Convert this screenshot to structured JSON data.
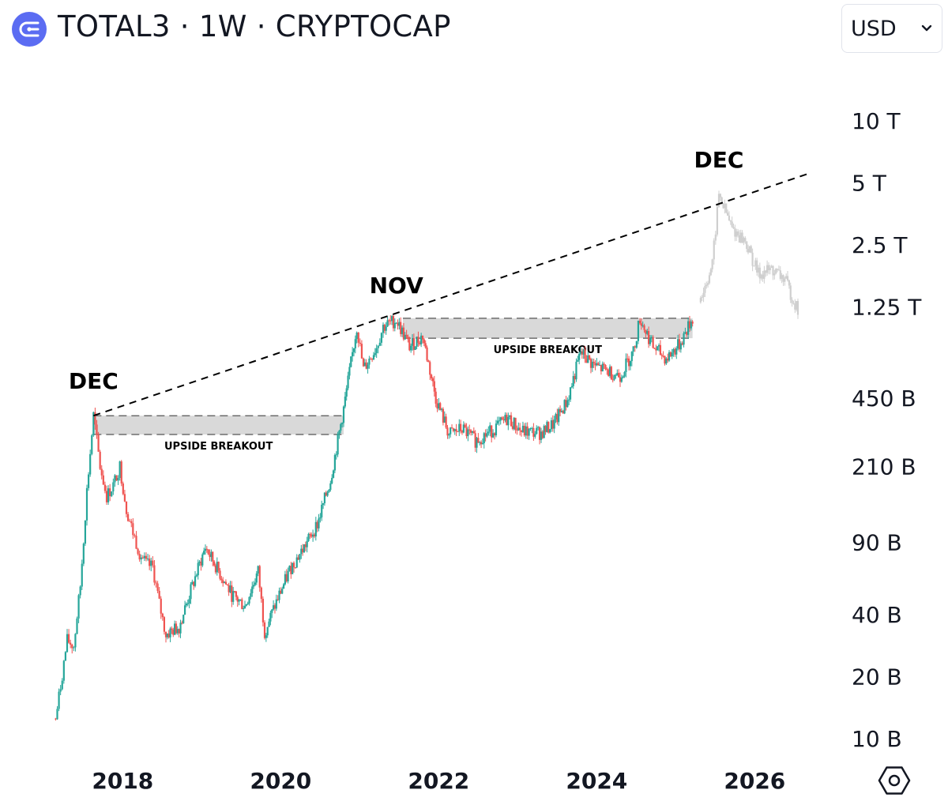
{
  "header": {
    "title": "TOTAL3 · 1W · CRYPTOCAP",
    "logo_icon": "cryptocap-logo-icon",
    "currency": "USD",
    "currency_icon": "chevron-down-icon",
    "accent_color": "#5b6cf2"
  },
  "chart_data": {
    "type": "candlestick",
    "scale": "log",
    "grid": false,
    "colors": {
      "up": "#26a69a",
      "down": "#ef5350",
      "projection": "#cfcfcf",
      "zone": "#d9d9d9"
    },
    "y_ticks": [
      {
        "label": "10 T",
        "value": 10000000000000
      },
      {
        "label": "5 T",
        "value": 5000000000000
      },
      {
        "label": "2.5 T",
        "value": 2500000000000
      },
      {
        "label": "1.25 T",
        "value": 1250000000000
      },
      {
        "label": "450 B",
        "value": 450000000000
      },
      {
        "label": "210 B",
        "value": 210000000000
      },
      {
        "label": "90 B",
        "value": 90000000000
      },
      {
        "label": "40 B",
        "value": 40000000000
      },
      {
        "label": "20 B",
        "value": 20000000000
      },
      {
        "label": "10 B",
        "value": 10000000000
      }
    ],
    "x_ticks": [
      {
        "label": "2018",
        "year": 2018
      },
      {
        "label": "2020",
        "year": 2020
      },
      {
        "label": "2022",
        "year": 2022
      },
      {
        "label": "2024",
        "year": 2024
      },
      {
        "label": "2026",
        "year": 2026
      }
    ],
    "x_range": [
      "2017-06",
      "2027-06"
    ],
    "price_path": [
      [
        "2017-07",
        11
      ],
      [
        "2017-08",
        18
      ],
      [
        "2017-09",
        30
      ],
      [
        "2017-10",
        28
      ],
      [
        "2017-11",
        55
      ],
      [
        "2017-12",
        160
      ],
      [
        "2018-01",
        370
      ],
      [
        "2018-02",
        210
      ],
      [
        "2018-03",
        150
      ],
      [
        "2018-04",
        170
      ],
      [
        "2018-05",
        210
      ],
      [
        "2018-06",
        130
      ],
      [
        "2018-07",
        100
      ],
      [
        "2018-08",
        80
      ],
      [
        "2018-09",
        70
      ],
      [
        "2018-10",
        68
      ],
      [
        "2018-11",
        45
      ],
      [
        "2018-12",
        32
      ],
      [
        "2019-02",
        35
      ],
      [
        "2019-04",
        55
      ],
      [
        "2019-06",
        85
      ],
      [
        "2019-08",
        65
      ],
      [
        "2019-10",
        50
      ],
      [
        "2019-12",
        44
      ],
      [
        "2020-02",
        65
      ],
      [
        "2020-03",
        33
      ],
      [
        "2020-05",
        48
      ],
      [
        "2020-07",
        68
      ],
      [
        "2020-09",
        85
      ],
      [
        "2020-11",
        110
      ],
      [
        "2021-01",
        180
      ],
      [
        "2021-03",
        400
      ],
      [
        "2021-05",
        1000
      ],
      [
        "2021-06",
        620
      ],
      [
        "2021-08",
        800
      ],
      [
        "2021-09",
        1000
      ],
      [
        "2021-11",
        1080
      ],
      [
        "2022-01",
        800
      ],
      [
        "2022-03",
        900
      ],
      [
        "2022-05",
        450
      ],
      [
        "2022-07",
        300
      ],
      [
        "2022-09",
        320
      ],
      [
        "2022-11",
        280
      ],
      [
        "2023-01",
        305
      ],
      [
        "2023-04",
        360
      ],
      [
        "2023-06",
        310
      ],
      [
        "2023-09",
        305
      ],
      [
        "2023-11",
        340
      ],
      [
        "2024-01",
        440
      ],
      [
        "2024-03",
        750
      ],
      [
        "2024-05",
        650
      ],
      [
        "2024-07",
        610
      ],
      [
        "2024-09",
        580
      ],
      [
        "2024-11",
        760
      ],
      [
        "2024-12",
        1100
      ],
      [
        "2025-02",
        800
      ],
      [
        "2025-04",
        700
      ],
      [
        "2025-06",
        820
      ],
      [
        "2025-08",
        1100
      ]
    ],
    "projection_path": [
      [
        "2025-09",
        1300
      ],
      [
        "2025-11",
        2000
      ],
      [
        "2025-12",
        4400
      ],
      [
        "2026-02",
        3000
      ],
      [
        "2026-04",
        2600
      ],
      [
        "2026-06",
        1800
      ],
      [
        "2026-08",
        1900
      ],
      [
        "2026-10",
        1700
      ],
      [
        "2026-12",
        1200
      ]
    ],
    "price_unit": "B",
    "trendline": {
      "style": "dashed",
      "from": [
        "2018-01",
        370
      ],
      "to": [
        "2027-02",
        5600
      ]
    },
    "peak_labels": [
      {
        "text": "DEC",
        "date": "2018-01"
      },
      {
        "text": "NOV",
        "date": "2021-11"
      },
      {
        "text": "DEC",
        "date": "2025-12"
      }
    ],
    "zones": [
      {
        "label": "UPSIDE BREAKOUT",
        "from": "2018-01",
        "to": "2021-03",
        "low": 300,
        "high": 370
      },
      {
        "label": "UPSIDE BREAKOUT",
        "from": "2021-12",
        "to": "2025-08",
        "low": 880,
        "high": 1100
      }
    ]
  },
  "footer": {
    "settings_icon": "chart-settings-hexagon-icon"
  }
}
